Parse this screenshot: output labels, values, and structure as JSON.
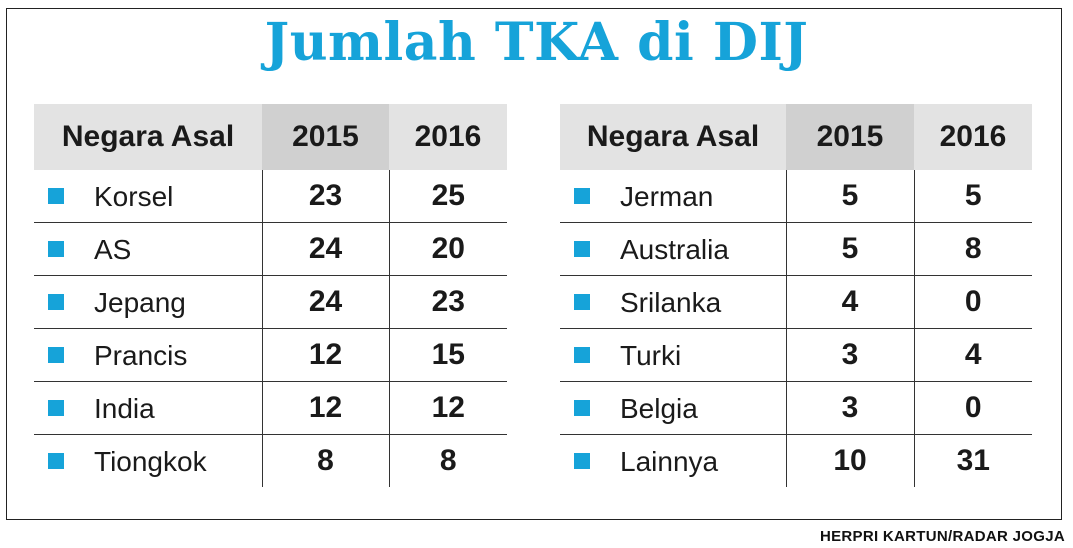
{
  "title": "Jumlah TKA di DIJ",
  "credit": "HERPRI KARTUN/RADAR JOGJA",
  "colors": {
    "accent": "#16a3d9",
    "header_bg": "#e3e3e3",
    "year_bg": "#d0d0d0"
  },
  "tables": [
    {
      "headers": [
        "Negara Asal",
        "2015",
        "2016"
      ],
      "rows": [
        {
          "country": "Korsel",
          "y2015": "23",
          "y2016": "25"
        },
        {
          "country": "AS",
          "y2015": "24",
          "y2016": "20"
        },
        {
          "country": "Jepang",
          "y2015": "24",
          "y2016": "23"
        },
        {
          "country": "Prancis",
          "y2015": "12",
          "y2016": "15"
        },
        {
          "country": "India",
          "y2015": "12",
          "y2016": "12"
        },
        {
          "country": "Tiongkok",
          "y2015": "8",
          "y2016": "8"
        }
      ]
    },
    {
      "headers": [
        "Negara Asal",
        "2015",
        "2016"
      ],
      "rows": [
        {
          "country": "Jerman",
          "y2015": "5",
          "y2016": "5"
        },
        {
          "country": "Australia",
          "y2015": "5",
          "y2016": "8"
        },
        {
          "country": "Srilanka",
          "y2015": "4",
          "y2016": "0"
        },
        {
          "country": "Turki",
          "y2015": "3",
          "y2016": "4"
        },
        {
          "country": "Belgia",
          "y2015": "3",
          "y2016": "0"
        },
        {
          "country": "Lainnya",
          "y2015": "10",
          "y2016": "31"
        }
      ]
    }
  ],
  "chart_data": {
    "type": "table",
    "title": "Jumlah TKA di DIJ",
    "columns": [
      "Negara Asal",
      "2015",
      "2016"
    ],
    "rows": [
      [
        "Korsel",
        23,
        25
      ],
      [
        "AS",
        24,
        20
      ],
      [
        "Jepang",
        24,
        23
      ],
      [
        "Prancis",
        12,
        15
      ],
      [
        "India",
        12,
        12
      ],
      [
        "Tiongkok",
        8,
        8
      ],
      [
        "Jerman",
        5,
        5
      ],
      [
        "Australia",
        5,
        8
      ],
      [
        "Srilanka",
        4,
        0
      ],
      [
        "Turki",
        3,
        4
      ],
      [
        "Belgia",
        3,
        0
      ],
      [
        "Lainnya",
        10,
        31
      ]
    ]
  }
}
